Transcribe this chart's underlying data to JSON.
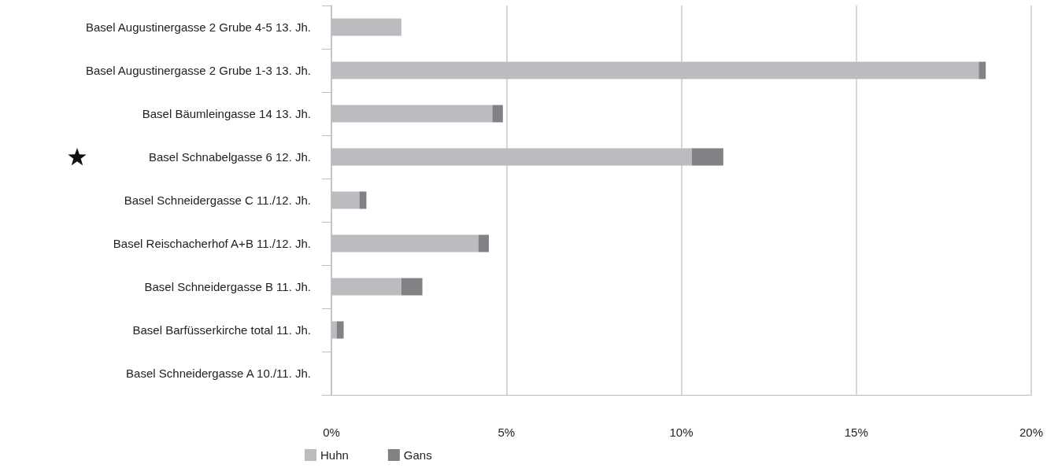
{
  "chart_data": {
    "type": "bar",
    "orientation": "horizontal",
    "stacked": true,
    "categories": [
      "Basel Augustinergasse 2 Grube 4-5 13. Jh.",
      "Basel Augustinergasse 2 Grube 1-3 13. Jh.",
      "Basel Bäumleingasse 14 13. Jh.",
      "Basel Schnabelgasse 6 12. Jh.",
      "Basel Schneidergasse C 11./12. Jh.",
      "Basel Reischacherhof A+B 11./12. Jh.",
      "Basel Schneidergasse B 11. Jh.",
      "Basel Barfüsserkirche total 11. Jh.",
      "Basel Schneidergasse A 10./11. Jh."
    ],
    "series": [
      {
        "name": "Huhn",
        "color": "#bbbcc0",
        "values": [
          2.0,
          18.5,
          4.6,
          10.3,
          0.8,
          4.2,
          2.0,
          0.15,
          0
        ]
      },
      {
        "name": "Gans",
        "color": "#818285",
        "values": [
          0,
          0.2,
          0.3,
          0.9,
          0.2,
          0.3,
          0.6,
          0.2,
          0
        ]
      }
    ],
    "xlim": [
      0,
      20
    ],
    "xticks": [
      {
        "value": 0,
        "label": "0%"
      },
      {
        "value": 5,
        "label": "5%"
      },
      {
        "value": 10,
        "label": "10%"
      },
      {
        "value": 15,
        "label": "15%"
      },
      {
        "value": 20,
        "label": "20%"
      }
    ],
    "grid": "x",
    "legend": "bottom left"
  }
}
